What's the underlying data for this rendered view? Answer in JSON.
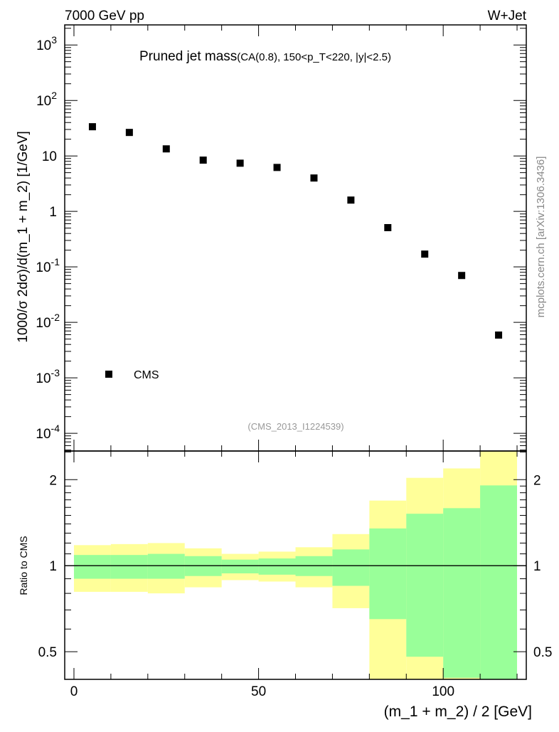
{
  "chart_data": [
    {
      "type": "scatter",
      "title": "Pruned jet mass",
      "subtitle": "(CA(0.8), 150<p_T<220, |y|<2.5)",
      "header_left": "7000 GeV pp",
      "header_right": "W+Jet",
      "ylabel": "1000/σ 2dσ)/d(m_1 + m_2) [1/GeV]",
      "xlabel": "(m_1 + m_2) / 2 [GeV]",
      "yscale": "log",
      "ylim": [
        4.8e-05,
        2300
      ],
      "xlim": [
        -2.5,
        122.5
      ],
      "legend": {
        "label": "CMS",
        "placement": "bottom-left"
      },
      "analysis_id": "(CMS_2013_I1224539)",
      "watermark": "mcplots.cern.ch [arXiv:1306.3436]",
      "yticks": [
        {
          "value": 1000,
          "base": "10",
          "exp": "3"
        },
        {
          "value": 100,
          "base": "10",
          "exp": "2"
        },
        {
          "value": 10,
          "base": "10",
          "exp": ""
        },
        {
          "value": 1,
          "base": "1",
          "exp": ""
        },
        {
          "value": 0.1,
          "base": "10",
          "exp": "-1"
        },
        {
          "value": 0.01,
          "base": "10",
          "exp": "-2"
        },
        {
          "value": 0.001,
          "base": "10",
          "exp": "-3"
        },
        {
          "value": 0.0001,
          "base": "10",
          "exp": "-4"
        }
      ],
      "series": [
        {
          "name": "CMS",
          "color": "#000000",
          "x": [
            5,
            15,
            25,
            35,
            45,
            55,
            65,
            75,
            85,
            95,
            105,
            115
          ],
          "y": [
            33.6,
            26.5,
            13.4,
            8.4,
            7.4,
            6.2,
            4.0,
            1.6,
            0.51,
            0.17,
            0.07,
            0.0059
          ]
        }
      ]
    },
    {
      "type": "area",
      "ylabel": "Ratio to CMS",
      "yscale": "log",
      "ylim": [
        0.4,
        2.52
      ],
      "xlim": [
        -2.5,
        122.5
      ],
      "xlabel": "(m_1 + m_2) / 2 [GeV]",
      "xticks": [
        "0",
        "50",
        "100"
      ],
      "xtick_values": [
        0,
        50,
        100
      ],
      "yticks": [
        "0.5",
        "1",
        "2"
      ],
      "ytick_values": [
        0.5,
        1,
        2
      ],
      "bin_edges": [
        0,
        10,
        20,
        30,
        40,
        50,
        60,
        70,
        80,
        90,
        100,
        110,
        120
      ],
      "bands": [
        {
          "name": "outer uncertainty",
          "color": "#ffff99",
          "upper": [
            1.18,
            1.19,
            1.2,
            1.15,
            1.1,
            1.12,
            1.16,
            1.29,
            1.69,
            2.03,
            2.19,
            2.8
          ],
          "lower": [
            0.81,
            0.81,
            0.8,
            0.84,
            0.89,
            0.88,
            0.84,
            0.71,
            0.3,
            0.3,
            0.3,
            0.3
          ]
        },
        {
          "name": "inner uncertainty",
          "color": "#99ff99",
          "upper": [
            1.09,
            1.09,
            1.1,
            1.08,
            1.05,
            1.06,
            1.08,
            1.14,
            1.35,
            1.52,
            1.59,
            1.91
          ],
          "lower": [
            0.9,
            0.9,
            0.9,
            0.92,
            0.94,
            0.93,
            0.92,
            0.85,
            0.65,
            0.48,
            0.405,
            0.3
          ]
        }
      ],
      "reference_line": 1
    }
  ]
}
